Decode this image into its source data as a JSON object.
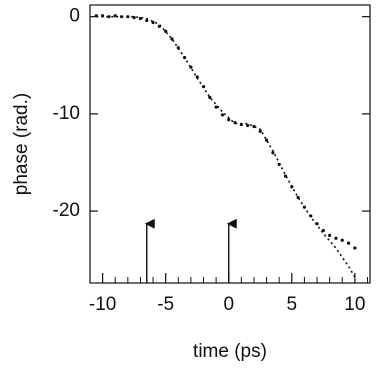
{
  "chart_data": {
    "type": "scatter",
    "xlabel": "time (ps)",
    "ylabel": "phase (rad.)",
    "xlim": [
      -11,
      11.2
    ],
    "ylim": [
      -27.4,
      1.2
    ],
    "xticks": [
      -10,
      -5,
      0,
      5,
      10
    ],
    "yticks": [
      0,
      -10,
      -20
    ],
    "xminorticks": [
      -11,
      -9,
      -8,
      -7,
      -6,
      -4,
      -3,
      -2,
      -1,
      1,
      2,
      3,
      4,
      6,
      7,
      8,
      9,
      11
    ],
    "series": [
      {
        "style": "dots",
        "color": "#111111",
        "x": [
          -10.5,
          -10,
          -9.5,
          -9,
          -8.5,
          -8,
          -7.5,
          -7,
          -6.5,
          -6,
          -5.5,
          -5,
          -4.5,
          -4,
          -3.5,
          -3,
          -2.5,
          -2,
          -1.5,
          -1,
          -0.5,
          0,
          0.5,
          1,
          1.5,
          2,
          2.5,
          3,
          3.5,
          4,
          4.5,
          5,
          5.5,
          6,
          6.5,
          7,
          7.5,
          8,
          8.5,
          9,
          9.5,
          10
        ],
        "values": [
          0.1,
          0.1,
          0,
          0.1,
          0,
          0,
          -0.1,
          -0.2,
          -0.4,
          -0.6,
          -1,
          -1.5,
          -2.3,
          -3.2,
          -4.2,
          -5.2,
          -6.2,
          -7.2,
          -8.3,
          -9.3,
          -10.1,
          -10.6,
          -10.9,
          -11.1,
          -11.2,
          -11.3,
          -11.8,
          -12.7,
          -14,
          -15.2,
          -16.4,
          -17.5,
          -18.6,
          -19.6,
          -20.5,
          -21.3,
          -22,
          -22.5,
          -22.8,
          -23,
          -23.3,
          -23.8
        ]
      },
      {
        "style": "dashed",
        "color": "#111111",
        "x": [
          -10.5,
          -9.5,
          -8.5,
          -7.5,
          -6.5,
          -5.5,
          -4.5,
          -3.5,
          -2.5,
          -1.5,
          -0.5,
          0.5,
          1.5,
          2.5,
          3.5,
          4.5,
          5.5,
          6.5,
          7.5,
          8.5,
          9.5,
          10
        ],
        "values": [
          0,
          0,
          0,
          0,
          -0.2,
          -0.8,
          -2.3,
          -4.2,
          -6.3,
          -8.3,
          -9.8,
          -11,
          -11,
          -11.6,
          -13.8,
          -16.3,
          -18.6,
          -20.6,
          -22.3,
          -23.8,
          -25.7,
          -26.8
        ]
      }
    ],
    "arrows": [
      {
        "x": -6.5,
        "y": -21.3
      },
      {
        "x": 0,
        "y": -21.3
      }
    ]
  }
}
